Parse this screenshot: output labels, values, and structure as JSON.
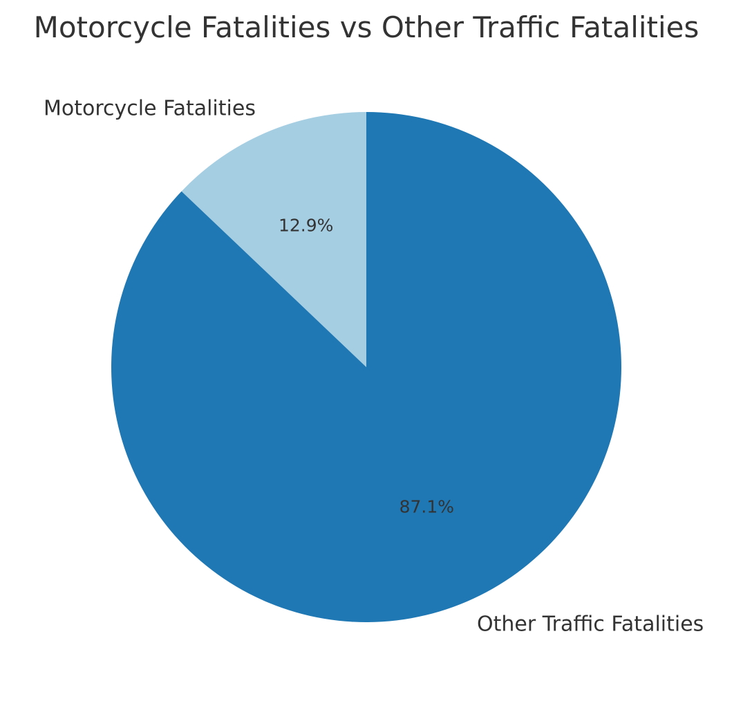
{
  "chart_data": {
    "type": "pie",
    "title": "Motorcycle Fatalities vs Other Traffic Fatalities",
    "slices": [
      {
        "label": "Motorcycle Fatalities",
        "value": 12.9,
        "pct_label": "12.9%",
        "color": "#a6cee3"
      },
      {
        "label": "Other Traffic Fatalities",
        "value": 87.1,
        "pct_label": "87.1%",
        "color": "#1f78b4"
      }
    ],
    "start_angle_deg": 90,
    "direction": "counterclockwise"
  }
}
